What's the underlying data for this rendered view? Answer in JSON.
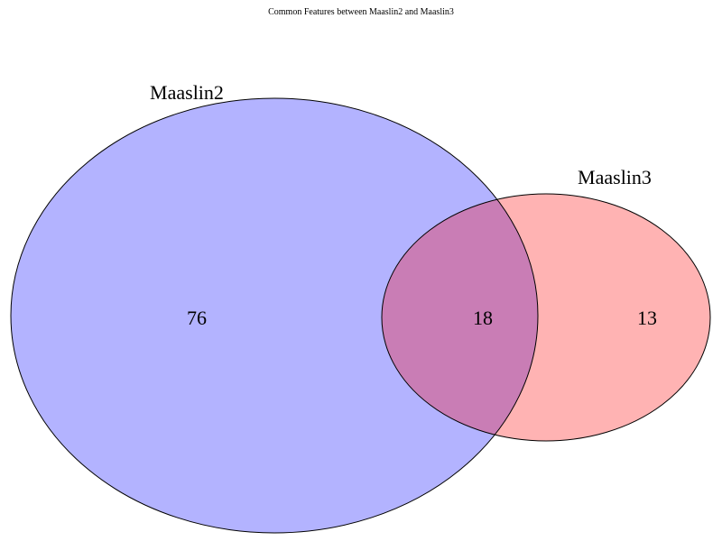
{
  "title": "Common Features between Maaslin2 and Maaslin3",
  "sets": [
    {
      "name": "Maaslin2",
      "color": "#b3b3ff"
    },
    {
      "name": "Maaslin3",
      "color": "#ffb3b3"
    }
  ],
  "overlap_color": "#c97db5",
  "outline_color": "#000000",
  "counts": {
    "maaslin2_only": "76",
    "both": "18",
    "maaslin3_only": "13"
  }
}
